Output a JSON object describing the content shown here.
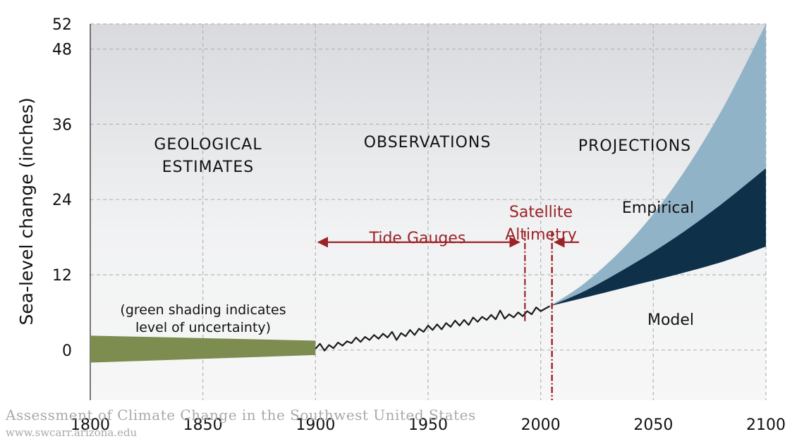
{
  "chart_data": {
    "type": "area",
    "ylabel": "Sea-level change (inches)",
    "xlabel": "",
    "xlim": [
      1800,
      2100
    ],
    "ylim": [
      -8,
      52
    ],
    "x_ticks": [
      1800,
      1850,
      1900,
      1950,
      2000,
      2050,
      2100
    ],
    "y_ticks": [
      0,
      12,
      24,
      36,
      48,
      52
    ],
    "grid": true,
    "era_labels": {
      "geological_line1": "GEOLOGICAL",
      "geological_line2": "ESTIMATES",
      "observations": "OBSERVATIONS",
      "projections": "PROJECTIONS"
    },
    "annotations": {
      "uncertainty_line1": "(green shading indicates",
      "uncertainty_line2": "level of uncertainty)",
      "tide_gauges": "Tide Gauges",
      "satellite_line1": "Satellite",
      "satellite_line2": "Altimetry"
    },
    "series": [
      {
        "name": "Geological estimates (uncertainty band)",
        "color": "#7d8c4f",
        "x": [
          1800,
          1900
        ],
        "upper": [
          2.3,
          1.5
        ],
        "lower": [
          -2.0,
          -0.8
        ]
      },
      {
        "name": "Observations",
        "color": "#1a1a1a",
        "x": [
          1900,
          1902,
          1904,
          1906,
          1908,
          1910,
          1912,
          1914,
          1916,
          1918,
          1920,
          1922,
          1924,
          1926,
          1928,
          1930,
          1932,
          1934,
          1936,
          1938,
          1940,
          1942,
          1944,
          1946,
          1948,
          1950,
          1952,
          1954,
          1956,
          1958,
          1960,
          1962,
          1964,
          1966,
          1968,
          1970,
          1972,
          1974,
          1976,
          1978,
          1980,
          1982,
          1984,
          1986,
          1988,
          1990,
          1992,
          1994,
          1996,
          1998,
          2000,
          2002,
          2004
        ],
        "y": [
          0.2,
          1.0,
          -0.1,
          0.8,
          0.3,
          1.2,
          0.7,
          1.4,
          1.1,
          2.0,
          1.3,
          2.1,
          1.6,
          2.4,
          1.8,
          2.6,
          2.0,
          2.9,
          1.6,
          2.7,
          2.2,
          3.2,
          2.4,
          3.4,
          2.9,
          3.9,
          3.2,
          4.1,
          3.3,
          4.3,
          3.7,
          4.7,
          3.9,
          4.8,
          4.0,
          5.2,
          4.5,
          5.3,
          4.8,
          5.6,
          4.9,
          6.3,
          5.0,
          5.7,
          5.2,
          6.0,
          5.4,
          6.2,
          5.7,
          6.8,
          6.2,
          6.6,
          7.0
        ]
      },
      {
        "name": "Model",
        "color": "#0e3049",
        "x": [
          2004,
          2020,
          2040,
          2060,
          2080,
          2100
        ],
        "lower": [
          7.0,
          8.4,
          10.2,
          12.0,
          14.0,
          16.5
        ],
        "upper": [
          7.0,
          9.5,
          13.5,
          18.0,
          23.2,
          29.0
        ]
      },
      {
        "name": "Empirical",
        "color": "#91b3c8",
        "x": [
          2004,
          2020,
          2040,
          2060,
          2080,
          2100
        ],
        "lower": [
          7.0,
          9.5,
          13.5,
          18.0,
          23.2,
          29.0
        ],
        "upper": [
          7.0,
          10.8,
          17.5,
          26.5,
          38.0,
          52.0
        ]
      }
    ],
    "markers": {
      "tide_gauges_start": 1900,
      "tide_gauges_end": 1993,
      "satellite_start_line": 1993,
      "satellite_line": 2005,
      "satellite_arrow_from": 2017
    }
  },
  "credit": {
    "line1": "Assessment of Climate Change in the Southwest United States",
    "line2": "www.swcarr.arizona.edu"
  },
  "colors": {
    "red": "#9b2226",
    "grid": "#b5b5b5"
  }
}
